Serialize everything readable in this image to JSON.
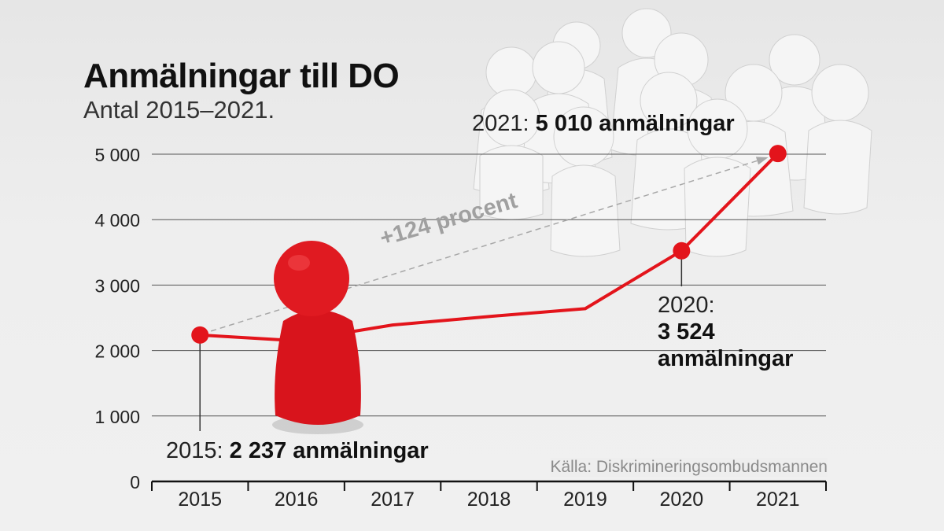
{
  "title": "Anmälningar till DO",
  "subtitle": "Antal 2015–2021.",
  "source": "Källa: Diskrimineringsombudsmannen",
  "annotations": {
    "a2021_prefix": "2021: ",
    "a2021_bold": "5 010 anmälningar",
    "a2020_line1": "2020:",
    "a2020_bold1": "3 524",
    "a2020_bold2": "anmälningar",
    "a2015_prefix": "2015: ",
    "a2015_bold": "2 237 anmälningar",
    "growth": "+124 procent"
  },
  "colors": {
    "line": "#e3141b",
    "grid": "#555555",
    "text": "#222222",
    "growth_arrow": "#a8a8a8"
  },
  "chart_data": {
    "type": "line",
    "categories": [
      "2015",
      "2016",
      "2017",
      "2018",
      "2019",
      "2020",
      "2021"
    ],
    "values": [
      2237,
      2150,
      2390,
      2520,
      2640,
      3524,
      5010
    ],
    "highlighted": [
      0,
      5,
      6
    ],
    "yticks": [
      "0",
      "1 000",
      "2 000",
      "3 000",
      "4 000",
      "5 000"
    ],
    "ytick_values": [
      0,
      1000,
      2000,
      3000,
      4000,
      5000
    ],
    "ylim": [
      0,
      5000
    ],
    "grid": true
  }
}
